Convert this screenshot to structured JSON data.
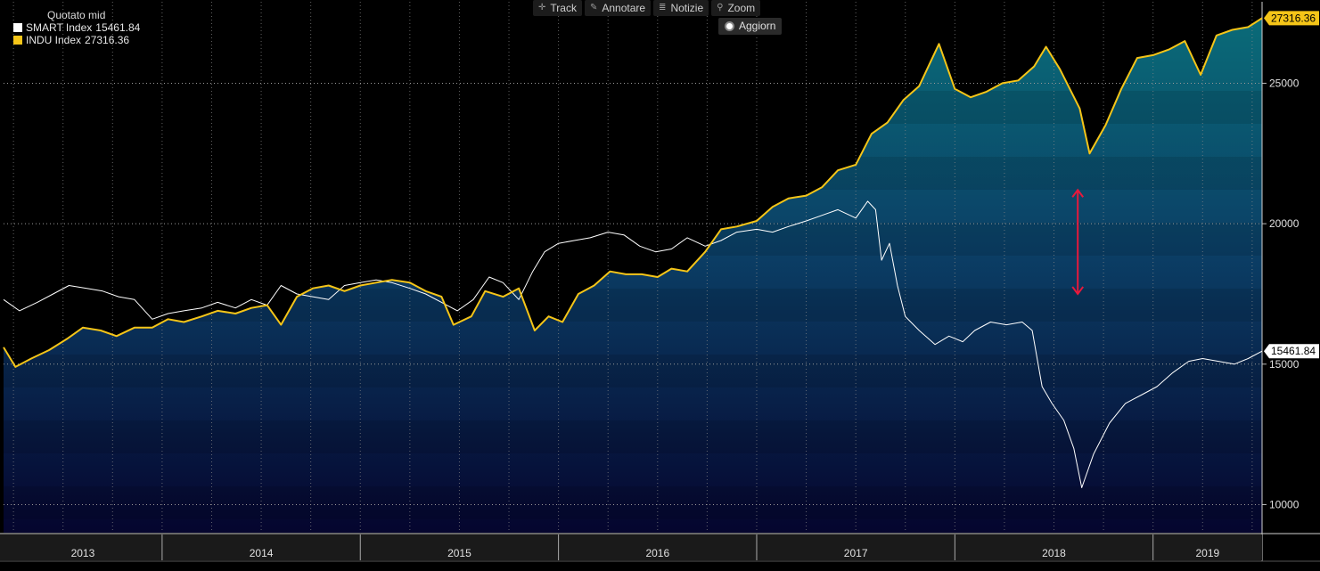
{
  "toolbar": {
    "track": "Track",
    "annotate": "Annotare",
    "news": "Notizie",
    "zoom": "Zoom",
    "refresh": "Aggiorn"
  },
  "legend": {
    "title": "Quotato mid",
    "items": [
      {
        "name": "SMART Index",
        "value": "15461.84",
        "color": "#ffffff"
      },
      {
        "name": "INDU Index",
        "value": "27316.36",
        "color": "#f5c518"
      }
    ]
  },
  "chart_data": {
    "type": "line",
    "title": "",
    "xlabel": "",
    "ylabel": "",
    "ylim": [
      9000,
      27900
    ],
    "yticks": [
      10000,
      15000,
      20000,
      25000
    ],
    "year_labels": [
      "2013",
      "2014",
      "2015",
      "2016",
      "2017",
      "2018",
      "2019"
    ],
    "year_bounds": [
      2013.2,
      2014,
      2015,
      2016,
      2017,
      2018,
      2019,
      2019.55
    ],
    "colors": {
      "smart": "#ffffff",
      "indu": "#f5c518",
      "arrow": "#e8193c"
    },
    "last_labels": {
      "smart": "15461.84",
      "indu": "27316.36"
    },
    "arrow": {
      "x": 2018.62,
      "y_from": 21200,
      "y_to": 17500
    },
    "series": [
      {
        "name": "SMART Index",
        "key": "smart",
        "points": [
          [
            2013.2,
            17300
          ],
          [
            2013.28,
            16900
          ],
          [
            2013.37,
            17200
          ],
          [
            2013.45,
            17500
          ],
          [
            2013.53,
            17800
          ],
          [
            2013.62,
            17700
          ],
          [
            2013.7,
            17600
          ],
          [
            2013.78,
            17400
          ],
          [
            2013.86,
            17300
          ],
          [
            2013.95,
            16600
          ],
          [
            2014.03,
            16800
          ],
          [
            2014.11,
            16900
          ],
          [
            2014.2,
            17000
          ],
          [
            2014.28,
            17200
          ],
          [
            2014.37,
            17000
          ],
          [
            2014.45,
            17300
          ],
          [
            2014.53,
            17100
          ],
          [
            2014.6,
            17800
          ],
          [
            2014.68,
            17500
          ],
          [
            2014.76,
            17400
          ],
          [
            2014.84,
            17300
          ],
          [
            2014.92,
            17800
          ],
          [
            2015.0,
            17900
          ],
          [
            2015.08,
            18000
          ],
          [
            2015.16,
            17900
          ],
          [
            2015.25,
            17700
          ],
          [
            2015.33,
            17500
          ],
          [
            2015.41,
            17200
          ],
          [
            2015.49,
            16900
          ],
          [
            2015.57,
            17300
          ],
          [
            2015.65,
            18100
          ],
          [
            2015.72,
            17900
          ],
          [
            2015.8,
            17300
          ],
          [
            2015.87,
            18300
          ],
          [
            2015.93,
            19000
          ],
          [
            2016.0,
            19300
          ],
          [
            2016.08,
            19400
          ],
          [
            2016.16,
            19500
          ],
          [
            2016.25,
            19700
          ],
          [
            2016.33,
            19600
          ],
          [
            2016.41,
            19200
          ],
          [
            2016.49,
            19000
          ],
          [
            2016.57,
            19100
          ],
          [
            2016.65,
            19500
          ],
          [
            2016.74,
            19200
          ],
          [
            2016.82,
            19400
          ],
          [
            2016.9,
            19700
          ],
          [
            2017.0,
            19800
          ],
          [
            2017.08,
            19700
          ],
          [
            2017.16,
            19900
          ],
          [
            2017.25,
            20100
          ],
          [
            2017.33,
            20300
          ],
          [
            2017.41,
            20500
          ],
          [
            2017.5,
            20200
          ],
          [
            2017.56,
            20800
          ],
          [
            2017.6,
            20500
          ],
          [
            2017.63,
            18700
          ],
          [
            2017.67,
            19300
          ],
          [
            2017.71,
            17800
          ],
          [
            2017.75,
            16700
          ],
          [
            2017.82,
            16200
          ],
          [
            2017.9,
            15700
          ],
          [
            2017.97,
            16000
          ],
          [
            2018.04,
            15800
          ],
          [
            2018.1,
            16200
          ],
          [
            2018.18,
            16500
          ],
          [
            2018.26,
            16400
          ],
          [
            2018.34,
            16500
          ],
          [
            2018.39,
            16200
          ],
          [
            2018.44,
            14200
          ],
          [
            2018.49,
            13600
          ],
          [
            2018.55,
            13000
          ],
          [
            2018.6,
            12000
          ],
          [
            2018.64,
            10600
          ],
          [
            2018.7,
            11800
          ],
          [
            2018.78,
            12900
          ],
          [
            2018.86,
            13600
          ],
          [
            2018.94,
            13900
          ],
          [
            2019.02,
            14200
          ],
          [
            2019.1,
            14700
          ],
          [
            2019.18,
            15100
          ],
          [
            2019.25,
            15200
          ],
          [
            2019.33,
            15100
          ],
          [
            2019.41,
            15000
          ],
          [
            2019.48,
            15200
          ],
          [
            2019.55,
            15461.84
          ]
        ]
      },
      {
        "name": "INDU Index",
        "key": "indu",
        "points": [
          [
            2013.2,
            15600
          ],
          [
            2013.26,
            14900
          ],
          [
            2013.34,
            15200
          ],
          [
            2013.43,
            15500
          ],
          [
            2013.52,
            15900
          ],
          [
            2013.6,
            16300
          ],
          [
            2013.69,
            16200
          ],
          [
            2013.77,
            16000
          ],
          [
            2013.86,
            16300
          ],
          [
            2013.95,
            16300
          ],
          [
            2014.03,
            16600
          ],
          [
            2014.11,
            16500
          ],
          [
            2014.2,
            16700
          ],
          [
            2014.28,
            16900
          ],
          [
            2014.37,
            16800
          ],
          [
            2014.45,
            17000
          ],
          [
            2014.53,
            17100
          ],
          [
            2014.6,
            16400
          ],
          [
            2014.68,
            17400
          ],
          [
            2014.76,
            17700
          ],
          [
            2014.84,
            17800
          ],
          [
            2014.92,
            17600
          ],
          [
            2015.0,
            17800
          ],
          [
            2015.08,
            17900
          ],
          [
            2015.16,
            18000
          ],
          [
            2015.25,
            17900
          ],
          [
            2015.33,
            17600
          ],
          [
            2015.41,
            17400
          ],
          [
            2015.47,
            16400
          ],
          [
            2015.56,
            16700
          ],
          [
            2015.63,
            17600
          ],
          [
            2015.72,
            17400
          ],
          [
            2015.8,
            17700
          ],
          [
            2015.88,
            16200
          ],
          [
            2015.95,
            16700
          ],
          [
            2016.02,
            16500
          ],
          [
            2016.1,
            17500
          ],
          [
            2016.18,
            17800
          ],
          [
            2016.26,
            18300
          ],
          [
            2016.34,
            18200
          ],
          [
            2016.42,
            18200
          ],
          [
            2016.5,
            18100
          ],
          [
            2016.57,
            18400
          ],
          [
            2016.65,
            18300
          ],
          [
            2016.74,
            19000
          ],
          [
            2016.82,
            19800
          ],
          [
            2016.9,
            19900
          ],
          [
            2017.0,
            20100
          ],
          [
            2017.08,
            20600
          ],
          [
            2017.16,
            20900
          ],
          [
            2017.25,
            21000
          ],
          [
            2017.33,
            21300
          ],
          [
            2017.41,
            21900
          ],
          [
            2017.5,
            22100
          ],
          [
            2017.58,
            23200
          ],
          [
            2017.66,
            23600
          ],
          [
            2017.74,
            24400
          ],
          [
            2017.82,
            24900
          ],
          [
            2017.92,
            26400
          ],
          [
            2018.0,
            24800
          ],
          [
            2018.08,
            24500
          ],
          [
            2018.16,
            24700
          ],
          [
            2018.24,
            25000
          ],
          [
            2018.32,
            25100
          ],
          [
            2018.4,
            25600
          ],
          [
            2018.46,
            26300
          ],
          [
            2018.53,
            25500
          ],
          [
            2018.58,
            24800
          ],
          [
            2018.63,
            24100
          ],
          [
            2018.68,
            22500
          ],
          [
            2018.76,
            23500
          ],
          [
            2018.84,
            24800
          ],
          [
            2018.92,
            25900
          ],
          [
            2019.0,
            26000
          ],
          [
            2019.08,
            26200
          ],
          [
            2019.16,
            26500
          ],
          [
            2019.24,
            25300
          ],
          [
            2019.32,
            26700
          ],
          [
            2019.4,
            26900
          ],
          [
            2019.48,
            27000
          ],
          [
            2019.55,
            27316.36
          ]
        ]
      }
    ]
  }
}
